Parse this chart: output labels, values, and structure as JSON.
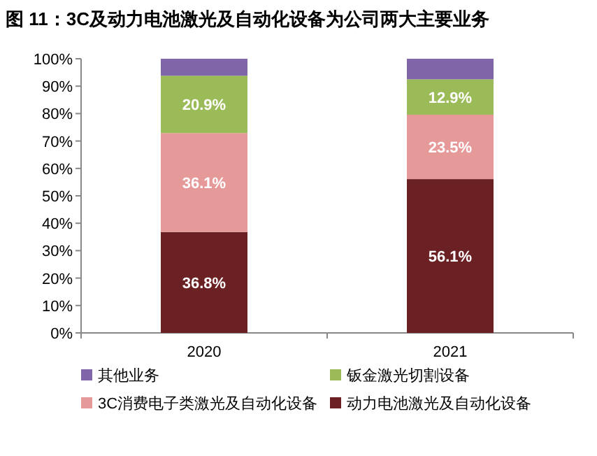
{
  "chart_data": {
    "type": "bar",
    "title": "图 11：3C及动力电池激光及自动化设备为公司两大主要业务",
    "categories": [
      "2020",
      "2021"
    ],
    "stacked": true,
    "ylim": [
      0,
      100
    ],
    "yticks": [
      {
        "value": 0,
        "label": "0%"
      },
      {
        "value": 10,
        "label": "10%"
      },
      {
        "value": 20,
        "label": "20%"
      },
      {
        "value": 30,
        "label": "30%"
      },
      {
        "value": 40,
        "label": "40%"
      },
      {
        "value": 50,
        "label": "50%"
      },
      {
        "value": 60,
        "label": "60%"
      },
      {
        "value": 70,
        "label": "70%"
      },
      {
        "value": 80,
        "label": "80%"
      },
      {
        "value": 90,
        "label": "90%"
      },
      {
        "value": 100,
        "label": "100%"
      }
    ],
    "legend": "bottom",
    "grid": false,
    "series": [
      {
        "name": "动力电池激光及自动化设备",
        "color": "#6b2023",
        "values": [
          36.8,
          56.1
        ],
        "value_labels": [
          "36.8%",
          "56.1%"
        ]
      },
      {
        "name": "3C消费电子类激光及自动化设备",
        "color": "#e59a99",
        "values": [
          36.1,
          23.5
        ],
        "value_labels": [
          "36.1%",
          "23.5%"
        ]
      },
      {
        "name": "钣金激光切割设备",
        "color": "#9bbb59",
        "values": [
          20.9,
          12.9
        ],
        "value_labels": [
          "20.9%",
          "12.9%"
        ]
      },
      {
        "name": "其他业务",
        "color": "#7f66a8",
        "values": [
          6.2,
          7.5
        ]
      }
    ]
  }
}
